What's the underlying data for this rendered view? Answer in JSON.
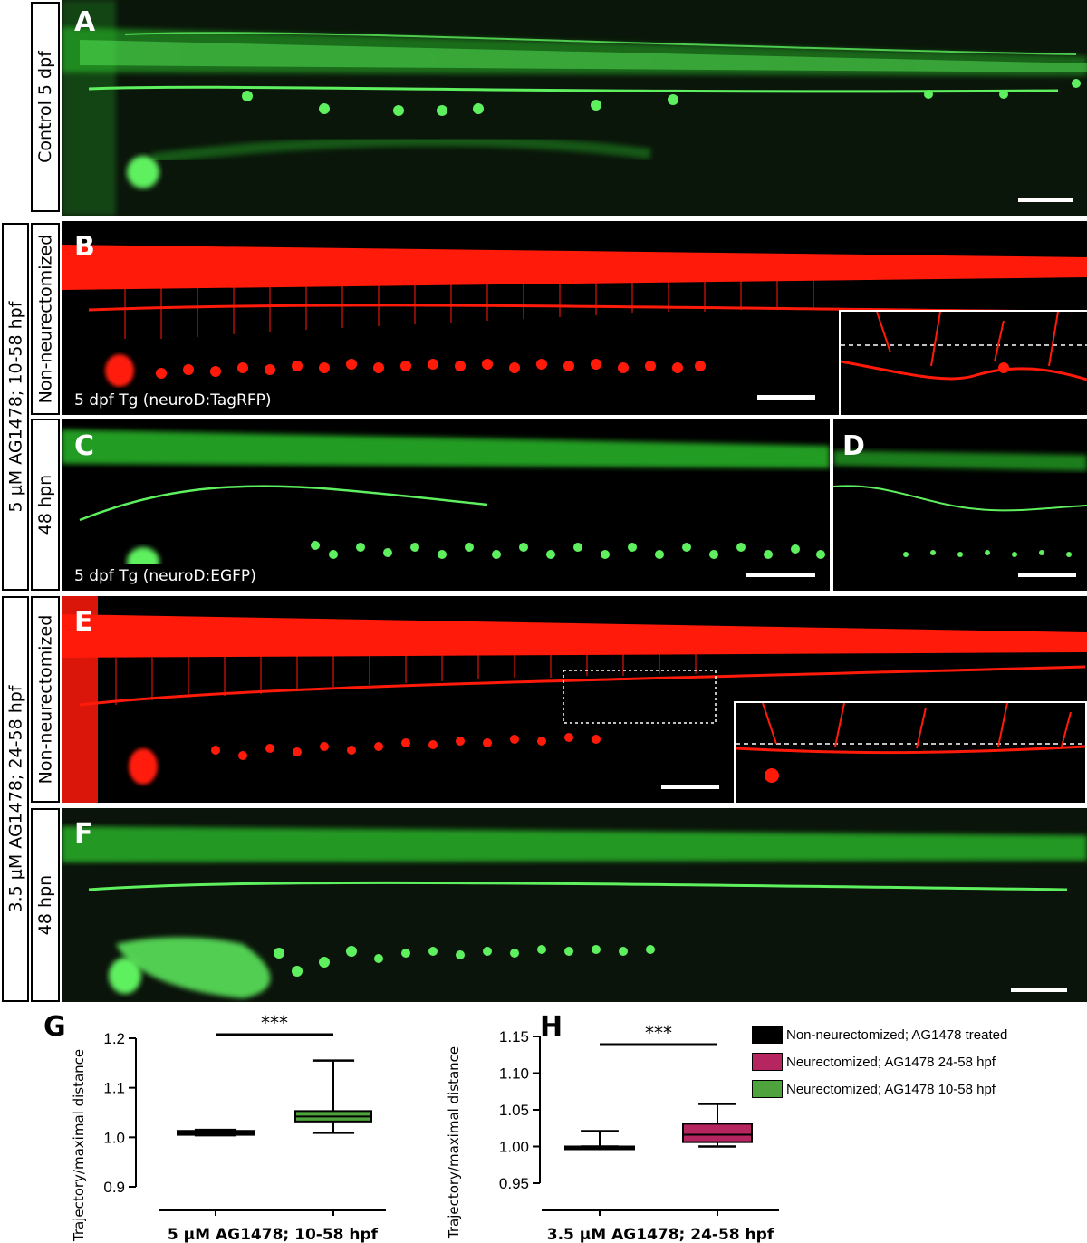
{
  "panels": {
    "A": {
      "letter": "A",
      "row_label": "Control 5 dpf",
      "color": "#2fd12f"
    },
    "B": {
      "letter": "B",
      "row_label": "Non-neurectomized",
      "caption": "5 dpf Tg (neuroD:TagRFP)",
      "color": "#ff1a0a"
    },
    "C": {
      "letter": "C",
      "row_label": "48 hpn",
      "caption": "5 dpf Tg (neuroD:EGFP)",
      "color": "#2fd12f"
    },
    "D": {
      "letter": "D",
      "color": "#2fd12f"
    },
    "E": {
      "letter": "E",
      "row_label": "Non-neurectomized",
      "color": "#ff1a0a"
    },
    "F": {
      "letter": "F",
      "row_label": "48 hpn",
      "color": "#2fd12f"
    }
  },
  "group_labels": {
    "group1": "5 μM AG1478; 10-58 hpf",
    "group2": "3.5 μM AG1478; 24-58 hpf"
  },
  "legend": {
    "items": [
      {
        "label": "Non-neurectomized; AG1478 treated",
        "color": "#000000"
      },
      {
        "label": "Neurectomized; AG1478 24-58 hpf",
        "color": "#b5255f"
      },
      {
        "label": "Neurectomized; AG1478 10-58 hpf",
        "color": "#4fa33c"
      }
    ]
  },
  "chart_data": [
    {
      "panel": "G",
      "type": "box",
      "ylabel": "Trajectory/maximal distance",
      "xlabel": "5 μM AG1478; 10-58 hpf",
      "ylim": [
        0.9,
        1.2
      ],
      "yticks": [
        "0.9",
        "1.0",
        "1.1",
        "1.2"
      ],
      "yticks_values": [
        0.9,
        1.0,
        1.1,
        1.2
      ],
      "significance": "***",
      "series": [
        {
          "group": "Non-neurectomized; AG1478 treated",
          "color": "#000000",
          "min": 1.004,
          "q1": 1.005,
          "median": 1.009,
          "q3": 1.013,
          "max": 1.015
        },
        {
          "group": "Neurectomized; AG1478 10-58 hpf",
          "color": "#4fa33c",
          "min": 1.009,
          "q1": 1.032,
          "median": 1.042,
          "q3": 1.053,
          "max": 1.155
        }
      ]
    },
    {
      "panel": "H",
      "type": "box",
      "ylabel": "Trajectory/maximal distance",
      "xlabel": "3.5 μM AG1478; 24-58 hpf",
      "ylim": [
        0.95,
        1.15
      ],
      "yticks": [
        "0.95",
        "1.00",
        "1.05",
        "1.10",
        "1.15"
      ],
      "yticks_values": [
        0.95,
        1.0,
        1.05,
        1.1,
        1.15
      ],
      "significance": "***",
      "series": [
        {
          "group": "Non-neurectomized; AG1478 treated",
          "color": "#000000",
          "min": 1.0,
          "q1": 1.0,
          "median": 1.0,
          "q3": 1.0,
          "max": 1.021
        },
        {
          "group": "Neurectomized; AG1478 24-58 hpf",
          "color": "#b5255f",
          "min": 1.0,
          "q1": 1.006,
          "median": 1.016,
          "q3": 1.031,
          "max": 1.058
        }
      ]
    }
  ]
}
